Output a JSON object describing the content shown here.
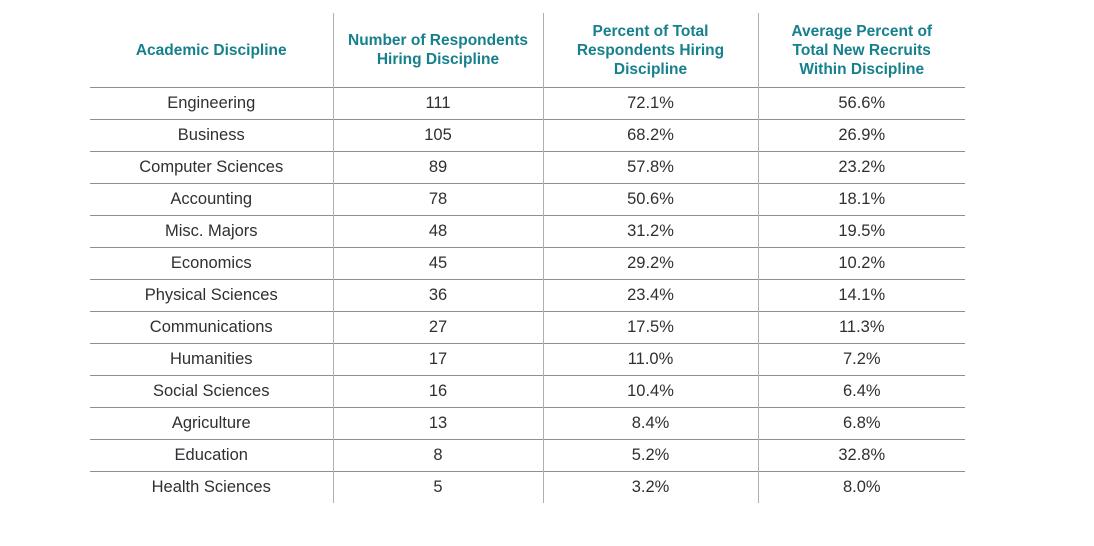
{
  "table": {
    "name": "academic-discipline-hiring-table",
    "columns": [
      {
        "id": "discipline",
        "lines": [
          "Academic Discipline"
        ]
      },
      {
        "id": "respondents",
        "lines": [
          "Number of Respondents",
          "Hiring Discipline"
        ]
      },
      {
        "id": "pct_respondents",
        "lines": [
          "Percent of Total",
          "Respondents Hiring",
          "Discipline"
        ]
      },
      {
        "id": "avg_pct_recruits",
        "lines": [
          "Average Percent of",
          "Total New Recruits",
          "Within Discipline"
        ]
      }
    ],
    "rows": [
      [
        "Engineering",
        "111",
        "72.1%",
        "56.6%"
      ],
      [
        "Business",
        "105",
        "68.2%",
        "26.9%"
      ],
      [
        "Computer Sciences",
        "89",
        "57.8%",
        "23.2%"
      ],
      [
        "Accounting",
        "78",
        "50.6%",
        "18.1%"
      ],
      [
        "Misc. Majors",
        "48",
        "31.2%",
        "19.5%"
      ],
      [
        "Economics",
        "45",
        "29.2%",
        "10.2%"
      ],
      [
        "Physical Sciences",
        "36",
        "23.4%",
        "14.1%"
      ],
      [
        "Communications",
        "27",
        "17.5%",
        "11.3%"
      ],
      [
        "Humanities",
        "17",
        "11.0%",
        "7.2%"
      ],
      [
        "Social Sciences",
        "16",
        "10.4%",
        "6.4%"
      ],
      [
        "Agriculture",
        "13",
        "8.4%",
        "6.8%"
      ],
      [
        "Education",
        "8",
        "5.2%",
        "32.8%"
      ],
      [
        "Health Sciences",
        "5",
        "3.2%",
        "8.0%"
      ]
    ]
  },
  "colors": {
    "header_text": "#17808d",
    "body_text": "#2f2f34",
    "horizontal_rule": "#8f8f8f",
    "vertical_rule": "#b0b0b0",
    "background": "#ffffff"
  },
  "chart_data": {
    "type": "table",
    "title": "",
    "columns": [
      "Academic Discipline",
      "Number of Respondents Hiring Discipline",
      "Percent of Total Respondents Hiring Discipline",
      "Average Percent of Total New Recruits Within Discipline"
    ],
    "rows": [
      [
        "Engineering",
        111,
        "72.1%",
        "56.6%"
      ],
      [
        "Business",
        105,
        "68.2%",
        "26.9%"
      ],
      [
        "Computer Sciences",
        89,
        "57.8%",
        "23.2%"
      ],
      [
        "Accounting",
        78,
        "50.6%",
        "18.1%"
      ],
      [
        "Misc. Majors",
        48,
        "31.2%",
        "19.5%"
      ],
      [
        "Economics",
        45,
        "29.2%",
        "10.2%"
      ],
      [
        "Physical Sciences",
        36,
        "23.4%",
        "14.1%"
      ],
      [
        "Communications",
        27,
        "17.5%",
        "11.3%"
      ],
      [
        "Humanities",
        17,
        "11.0%",
        "7.2%"
      ],
      [
        "Social Sciences",
        16,
        "10.4%",
        "6.4%"
      ],
      [
        "Agriculture",
        13,
        "8.4%",
        "6.8%"
      ],
      [
        "Education",
        8,
        "5.2%",
        "32.8%"
      ],
      [
        "Health Sciences",
        5,
        "3.2%",
        "8.0%"
      ]
    ]
  }
}
